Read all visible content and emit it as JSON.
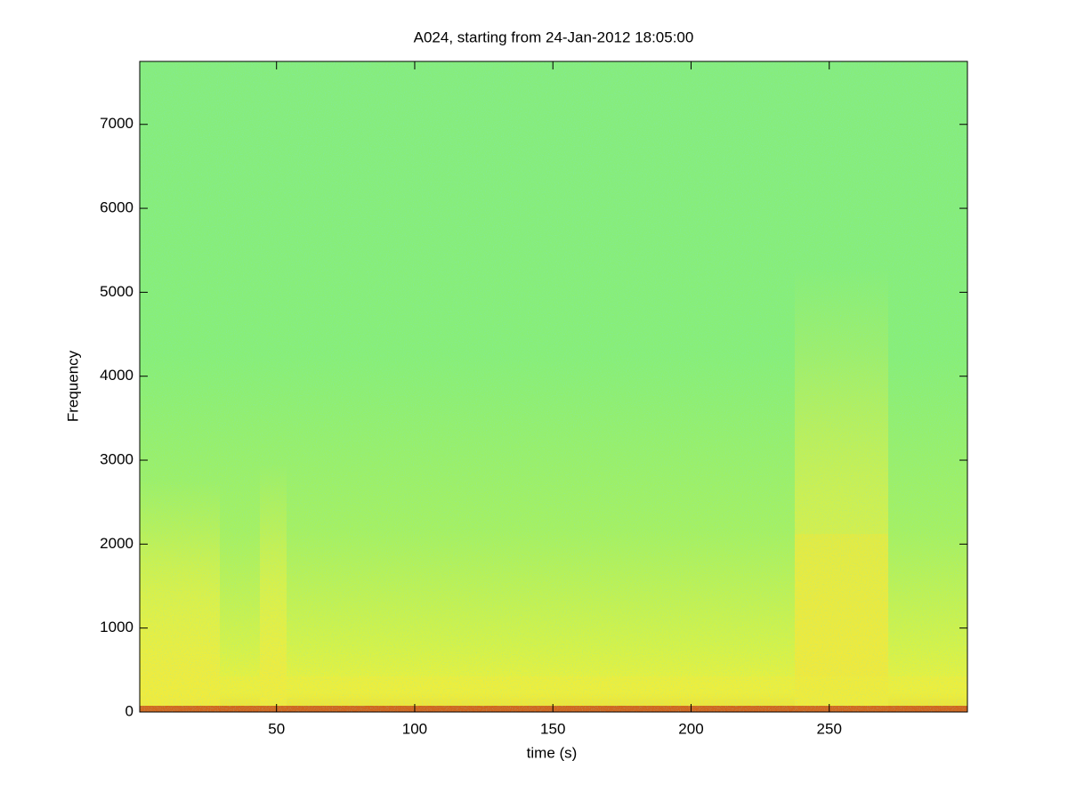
{
  "chart_data": {
    "type": "spectrogram",
    "title": "A024, starting from 24-Jan-2012 18:05:00",
    "x_label": "time (s)",
    "y_label": "Frequency",
    "xlim": [
      0.5,
      300
    ],
    "xticks": [
      50,
      100,
      150,
      200,
      250
    ],
    "ylim": [
      0,
      7750
    ],
    "yticks": [
      0,
      1000,
      2000,
      3000,
      4000,
      5000,
      6000,
      7000
    ]
  }
}
